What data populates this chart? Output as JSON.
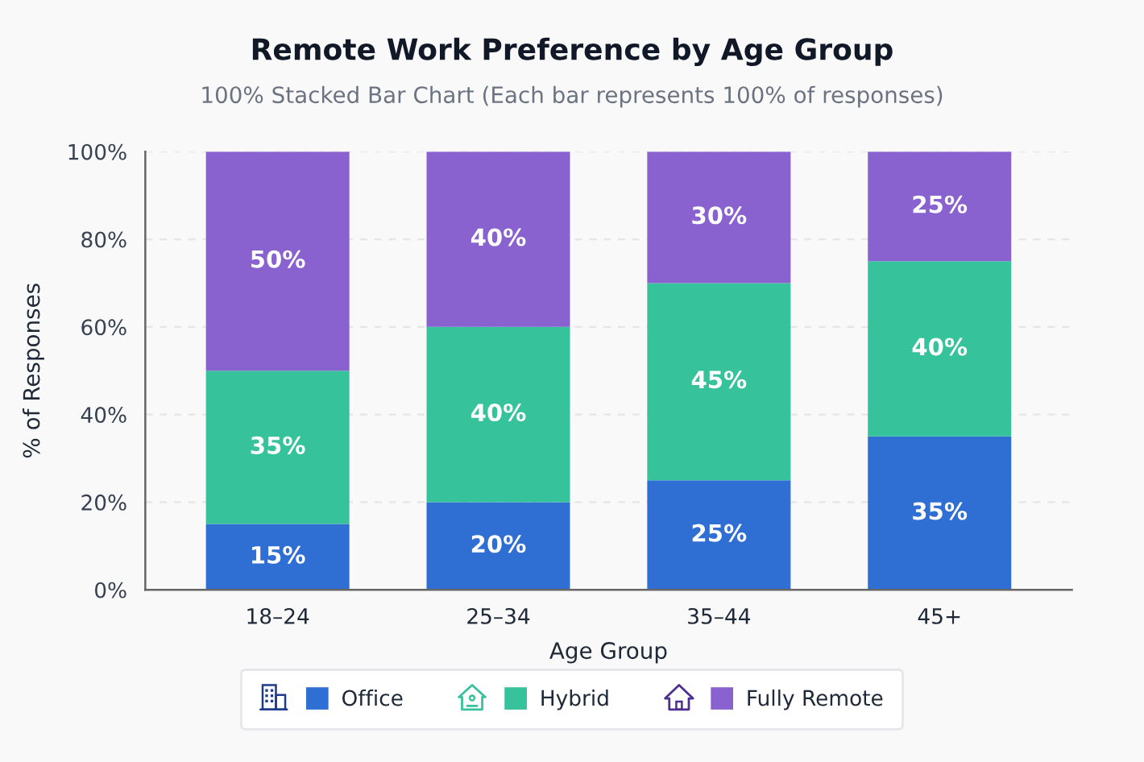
{
  "chart_data": {
    "type": "bar",
    "stacked": true,
    "title": "Remote Work Preference by Age Group",
    "subtitle": "100% Stacked Bar Chart (Each bar represents 100% of responses)",
    "xlabel": "Age Group",
    "ylabel": "% of Responses",
    "categories": [
      "18–24",
      "25–34",
      "35–44",
      "45+"
    ],
    "series": [
      {
        "name": "Office",
        "color": "#2f6fd4",
        "values": [
          15,
          20,
          25,
          35
        ],
        "value_labels": [
          "15%",
          "20%",
          "25%",
          "35%"
        ]
      },
      {
        "name": "Hybrid",
        "color": "#36c29b",
        "values": [
          35,
          40,
          45,
          40
        ],
        "value_labels": [
          "35%",
          "40%",
          "45%",
          "40%"
        ]
      },
      {
        "name": "Fully Remote",
        "color": "#8962d0",
        "values": [
          50,
          40,
          30,
          25
        ],
        "value_labels": [
          "50%",
          "40%",
          "30%",
          "25%"
        ]
      }
    ],
    "ylim": [
      0,
      100
    ],
    "yticks": [
      {
        "value": 0,
        "label": "0%"
      },
      {
        "value": 20,
        "label": "20%"
      },
      {
        "value": 40,
        "label": "40%"
      },
      {
        "value": 60,
        "label": "60%"
      },
      {
        "value": 80,
        "label": "80%"
      },
      {
        "value": 100,
        "label": "100%"
      }
    ],
    "grid": "y",
    "legend": "bottom"
  }
}
